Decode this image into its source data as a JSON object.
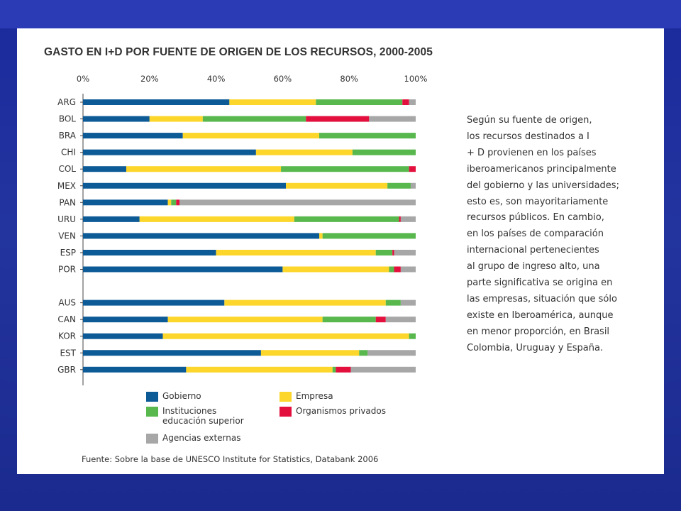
{
  "chart_data": {
    "type": "bar",
    "orientation": "horizontal",
    "stacked": true,
    "title": "GASTO EN I+D POR FUENTE DE ORIGEN DE LOS RECURSOS, 2000-2005",
    "xlim": [
      0,
      100
    ],
    "x_ticks": [
      "0%",
      "20%",
      "40%",
      "60%",
      "80%",
      "100%"
    ],
    "categories": [
      "ARG",
      "BOL",
      "BRA",
      "CHI",
      "COL",
      "MEX",
      "PAN",
      "URU",
      "VEN",
      "ESP",
      "POR",
      "",
      "AUS",
      "CAN",
      "KOR",
      "EST",
      "GBR"
    ],
    "series": [
      {
        "name": "Gobierno",
        "color": "#0c5a96",
        "values": [
          44,
          20,
          30,
          52,
          13,
          61,
          25.5,
          17,
          71,
          40,
          60,
          null,
          42.5,
          25.5,
          24,
          53.5,
          31
        ]
      },
      {
        "name": "Empresa",
        "color": "#fcd62a",
        "values": [
          26,
          16,
          41,
          29,
          46.5,
          30.5,
          1,
          46.5,
          1,
          48,
          32,
          null,
          48.5,
          46.5,
          74,
          29.5,
          44
        ]
      },
      {
        "name": "Instituciones educación superior",
        "color": "#58b84e",
        "values": [
          26,
          31,
          29,
          19,
          38.5,
          7,
          1.5,
          31.5,
          28,
          5,
          1.5,
          null,
          4.5,
          16,
          2,
          2.5,
          1
        ]
      },
      {
        "name": "Organismos privados",
        "color": "#e3103e",
        "values": [
          2,
          19,
          0,
          0,
          2,
          0,
          1,
          0.5,
          0,
          0.5,
          2,
          null,
          0,
          3,
          0,
          0,
          4.5
        ]
      },
      {
        "name": "Agencias externas",
        "color": "#a7a7a7",
        "values": [
          2,
          14,
          0,
          0,
          0,
          1.5,
          71,
          4.5,
          0,
          6.5,
          4.5,
          null,
          4.5,
          9,
          0,
          14.5,
          19.5
        ]
      }
    ],
    "grid": false,
    "legend_position": "bottom"
  },
  "legend": [
    {
      "label": "Gobierno",
      "color": "#0c5a96"
    },
    {
      "label": "Empresa",
      "color": "#fcd62a"
    },
    {
      "label_line1": "Instituciones",
      "label_line2": "educación superior",
      "color": "#58b84e"
    },
    {
      "label": "Organismos privados",
      "color": "#e3103e"
    },
    {
      "label": "Agencias externas",
      "color": "#a7a7a7"
    }
  ],
  "source": "Fuente: Sobre la base de UNESCO Institute for Statistics, Databank 2006",
  "side_text_lines": [
    "Según su fuente de origen,",
    "los recursos destinados a I",
    "+ D provienen en los países",
    "iberoamericanos principalmente",
    "del gobierno y las universidades;",
    "esto es, son mayoritariamente",
    "recursos públicos. En cambio,",
    "en los países de comparación",
    "internacional pertenecientes",
    "al grupo de ingreso alto, una",
    "parte significativa se origina en",
    "las empresas, situación que sólo",
    "existe en Iberoamérica, aunque",
    "en menor proporción, en Brasil",
    "Colombia, Uruguay y España."
  ]
}
